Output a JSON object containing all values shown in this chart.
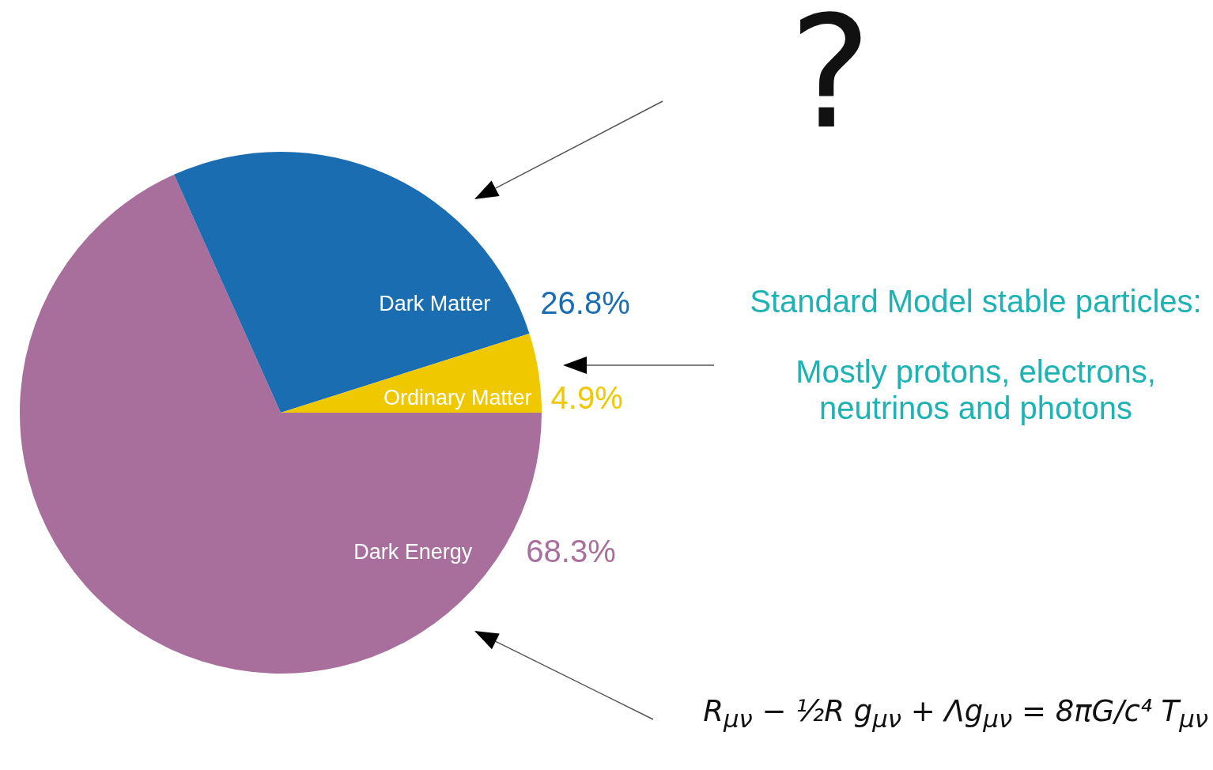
{
  "chart_data": {
    "type": "pie",
    "categories": [
      "Dark Energy",
      "Dark Matter",
      "Ordinary Matter"
    ],
    "values": [
      68.3,
      26.8,
      4.9
    ],
    "colors": [
      "#a86f9c",
      "#1b6db2",
      "#f0c800"
    ],
    "value_labels": [
      "68.3%",
      "26.8%",
      "4.9%"
    ],
    "annotations": [
      "?",
      "Standard Model stable particles:",
      "Mostly protons, electrons, neutrinos and photons",
      "R$_{μν}$ − ½R g$_{μν}$ + Λg$_{μν}$ = 8πG/c⁴ T$_{μν}$"
    ]
  }
}
